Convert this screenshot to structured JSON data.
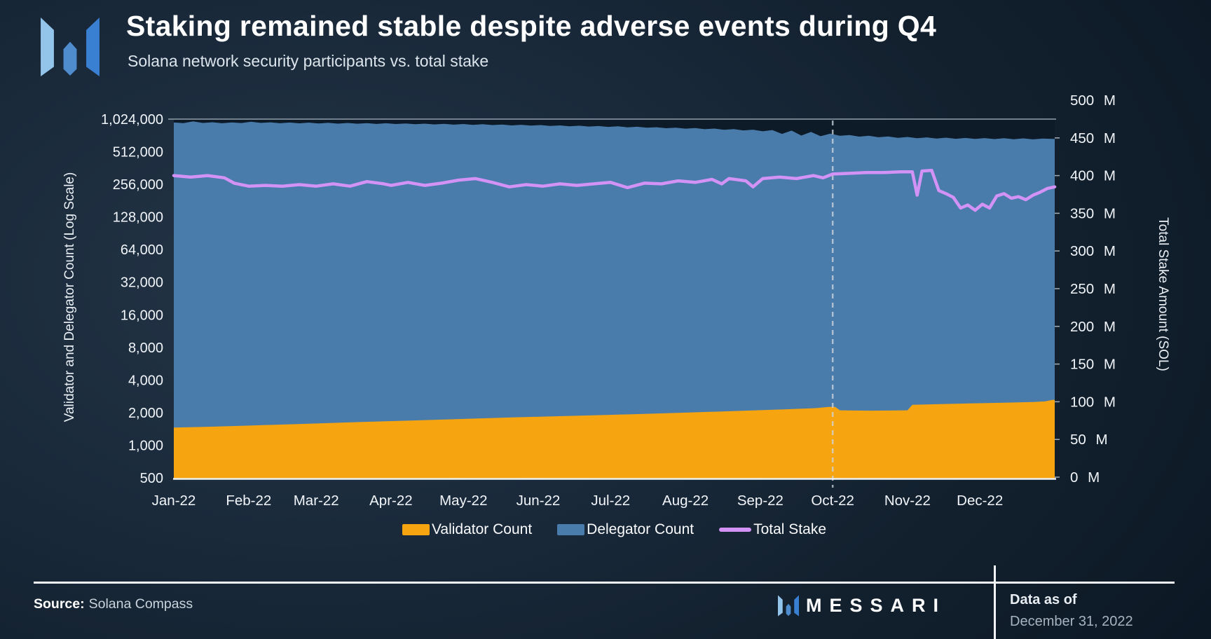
{
  "header": {
    "title": "Staking remained stable despite adverse events during Q4",
    "subtitle": "Solana network security participants vs. total stake"
  },
  "colors": {
    "validator": "#F6A511",
    "delegator": "#4A7CAB",
    "stake": "#D392F5",
    "dashed_line": "#CED6DE",
    "top_border": "#7E8B97",
    "bottom_axis": "#EDF0F2",
    "tick_text": "#F1F5F9",
    "plot_bg": "#0D1A27",
    "logo_light_blue": "#93C4EA",
    "logo_mid_blue": "#4E8CCE",
    "logo_bright_blue": "#3A80D2"
  },
  "chart_data": {
    "type": "area+line",
    "title": "Staking remained stable despite adverse events during Q4",
    "x_unit": "day_of_year_2022",
    "months": [
      "Jan-22",
      "Feb-22",
      "Mar-22",
      "Apr-22",
      "May-22",
      "Jun-22",
      "Jul-22",
      "Aug-22",
      "Sep-22",
      "Oct-22",
      "Nov-22",
      "Dec-22"
    ],
    "month_start_days": [
      0,
      31,
      59,
      90,
      120,
      151,
      181,
      212,
      243,
      273,
      304,
      334
    ],
    "left_axis": {
      "label": "Validator and Delegator Count (Log Scale)",
      "scale": "log2",
      "min": 500,
      "max": 1024000,
      "tick_values": [
        500,
        1000,
        2000,
        4000,
        8000,
        16000,
        32000,
        64000,
        128000,
        256000,
        512000,
        1024000
      ],
      "tick_labels": [
        "500",
        "1,000",
        "2,000",
        "4,000",
        "8,000",
        "16,000",
        "32,000",
        "64,000",
        "128,000",
        "256,000",
        "512,000",
        "1,024,000"
      ]
    },
    "right_axis": {
      "label": "Total Stake Amount (SOL)",
      "scale": "linear",
      "min": 0,
      "max": 500,
      "unit": "M SOL",
      "tick_values": [
        0,
        50,
        100,
        150,
        200,
        250,
        300,
        350,
        400,
        450,
        500
      ],
      "tick_labels": [
        "0 M",
        "50 M",
        "100 M",
        "150 M",
        "200 M",
        "250 M",
        "300 M",
        "350 M",
        "400 M",
        "450 M",
        "500 M"
      ]
    },
    "annotations": {
      "dashed_vline_day": 273
    },
    "series": [
      {
        "name": "Validator Count",
        "type": "area",
        "axis": "left",
        "color": "#F6A511",
        "points": [
          [
            0,
            1455
          ],
          [
            14,
            1480
          ],
          [
            28,
            1510
          ],
          [
            42,
            1545
          ],
          [
            56,
            1580
          ],
          [
            70,
            1620
          ],
          [
            84,
            1655
          ],
          [
            98,
            1690
          ],
          [
            112,
            1725
          ],
          [
            126,
            1765
          ],
          [
            140,
            1805
          ],
          [
            154,
            1840
          ],
          [
            168,
            1875
          ],
          [
            182,
            1910
          ],
          [
            196,
            1950
          ],
          [
            210,
            1995
          ],
          [
            224,
            2040
          ],
          [
            238,
            2090
          ],
          [
            252,
            2140
          ],
          [
            266,
            2200
          ],
          [
            271,
            2255
          ],
          [
            274,
            2265
          ],
          [
            276,
            2100
          ],
          [
            288,
            2085
          ],
          [
            300,
            2095
          ],
          [
            304,
            2100
          ],
          [
            306,
            2360
          ],
          [
            316,
            2390
          ],
          [
            330,
            2430
          ],
          [
            344,
            2470
          ],
          [
            356,
            2510
          ],
          [
            361,
            2540
          ],
          [
            364,
            2620
          ],
          [
            365,
            2620
          ]
        ]
      },
      {
        "name": "Delegator Count",
        "type": "area",
        "axis": "left",
        "color": "#4A7CAB",
        "points": [
          [
            0,
            952000
          ],
          [
            4,
            940000
          ],
          [
            8,
            975000
          ],
          [
            12,
            944000
          ],
          [
            16,
            958000
          ],
          [
            20,
            938000
          ],
          [
            24,
            955000
          ],
          [
            28,
            942000
          ],
          [
            32,
            968000
          ],
          [
            36,
            945000
          ],
          [
            40,
            956000
          ],
          [
            44,
            938000
          ],
          [
            48,
            952000
          ],
          [
            52,
            936000
          ],
          [
            56,
            950000
          ],
          [
            60,
            934000
          ],
          [
            64,
            946000
          ],
          [
            68,
            930000
          ],
          [
            72,
            944000
          ],
          [
            76,
            928000
          ],
          [
            80,
            940000
          ],
          [
            84,
            924000
          ],
          [
            88,
            938000
          ],
          [
            92,
            922000
          ],
          [
            96,
            934000
          ],
          [
            100,
            918000
          ],
          [
            104,
            930000
          ],
          [
            108,
            914000
          ],
          [
            112,
            926000
          ],
          [
            116,
            910000
          ],
          [
            120,
            922000
          ],
          [
            124,
            906000
          ],
          [
            128,
            918000
          ],
          [
            132,
            902000
          ],
          [
            136,
            912000
          ],
          [
            140,
            896000
          ],
          [
            144,
            908000
          ],
          [
            148,
            892000
          ],
          [
            152,
            902000
          ],
          [
            156,
            886000
          ],
          [
            160,
            896000
          ],
          [
            164,
            880000
          ],
          [
            168,
            890000
          ],
          [
            172,
            874000
          ],
          [
            176,
            884000
          ],
          [
            180,
            868000
          ],
          [
            184,
            878000
          ],
          [
            188,
            860000
          ],
          [
            192,
            870000
          ],
          [
            196,
            852000
          ],
          [
            200,
            862000
          ],
          [
            204,
            844000
          ],
          [
            208,
            854000
          ],
          [
            212,
            836000
          ],
          [
            216,
            846000
          ],
          [
            220,
            826000
          ],
          [
            224,
            838000
          ],
          [
            228,
            816000
          ],
          [
            232,
            828000
          ],
          [
            236,
            806000
          ],
          [
            240,
            818000
          ],
          [
            244,
            790000
          ],
          [
            248,
            812000
          ],
          [
            252,
            748000
          ],
          [
            256,
            802000
          ],
          [
            260,
            722000
          ],
          [
            264,
            780000
          ],
          [
            268,
            712000
          ],
          [
            272,
            752000
          ],
          [
            276,
            718000
          ],
          [
            280,
            730000
          ],
          [
            284,
            706000
          ],
          [
            288,
            718000
          ],
          [
            292,
            696000
          ],
          [
            296,
            708000
          ],
          [
            300,
            688000
          ],
          [
            304,
            700000
          ],
          [
            308,
            682000
          ],
          [
            312,
            694000
          ],
          [
            316,
            678000
          ],
          [
            320,
            690000
          ],
          [
            324,
            674000
          ],
          [
            328,
            686000
          ],
          [
            332,
            672000
          ],
          [
            336,
            684000
          ],
          [
            340,
            670000
          ],
          [
            344,
            682000
          ],
          [
            348,
            668000
          ],
          [
            352,
            680000
          ],
          [
            356,
            666000
          ],
          [
            360,
            678000
          ],
          [
            364,
            672000
          ],
          [
            365,
            672000
          ]
        ]
      },
      {
        "name": "Total Stake",
        "type": "line",
        "axis": "right",
        "color": "#D392F5",
        "points_unit": "million_SOL",
        "points": [
          [
            0,
            400
          ],
          [
            7,
            398
          ],
          [
            14,
            400
          ],
          [
            21,
            397
          ],
          [
            25,
            390
          ],
          [
            31,
            386
          ],
          [
            38,
            387
          ],
          [
            45,
            386
          ],
          [
            52,
            388
          ],
          [
            59,
            386
          ],
          [
            66,
            389
          ],
          [
            73,
            386
          ],
          [
            80,
            392
          ],
          [
            87,
            389
          ],
          [
            90,
            387
          ],
          [
            97,
            391
          ],
          [
            104,
            387
          ],
          [
            111,
            390
          ],
          [
            118,
            394
          ],
          [
            125,
            396
          ],
          [
            132,
            391
          ],
          [
            139,
            385
          ],
          [
            146,
            388
          ],
          [
            153,
            386
          ],
          [
            160,
            389
          ],
          [
            167,
            387
          ],
          [
            174,
            389
          ],
          [
            181,
            391
          ],
          [
            188,
            384
          ],
          [
            195,
            390
          ],
          [
            202,
            389
          ],
          [
            209,
            393
          ],
          [
            216,
            391
          ],
          [
            223,
            395
          ],
          [
            227,
            389
          ],
          [
            230,
            396
          ],
          [
            237,
            393
          ],
          [
            240,
            385
          ],
          [
            244,
            396
          ],
          [
            251,
            398
          ],
          [
            258,
            396
          ],
          [
            265,
            400
          ],
          [
            269,
            397
          ],
          [
            273,
            402
          ],
          [
            280,
            403
          ],
          [
            287,
            404
          ],
          [
            294,
            404
          ],
          [
            301,
            405
          ],
          [
            306,
            405
          ],
          [
            308,
            374
          ],
          [
            310,
            406
          ],
          [
            314,
            407
          ],
          [
            317,
            380
          ],
          [
            320,
            376
          ],
          [
            323,
            371
          ],
          [
            326,
            357
          ],
          [
            329,
            361
          ],
          [
            332,
            354
          ],
          [
            335,
            362
          ],
          [
            338,
            357
          ],
          [
            341,
            373
          ],
          [
            344,
            376
          ],
          [
            347,
            370
          ],
          [
            350,
            372
          ],
          [
            353,
            368
          ],
          [
            356,
            374
          ],
          [
            359,
            378
          ],
          [
            362,
            383
          ],
          [
            365,
            385
          ]
        ]
      }
    ]
  },
  "legend": {
    "items": [
      {
        "label": "Validator Count",
        "color": "#F6A511",
        "type": "rect"
      },
      {
        "label": "Delegator Count",
        "color": "#4A7CAB",
        "type": "rect"
      },
      {
        "label": "Total Stake",
        "color": "#D392F5",
        "type": "line"
      }
    ]
  },
  "footer": {
    "source_label": "Source:",
    "source_value": "Solana Compass",
    "brand": "MESSARI",
    "data_as_of_label": "Data as of",
    "data_as_of_value": "December 31, 2022"
  }
}
